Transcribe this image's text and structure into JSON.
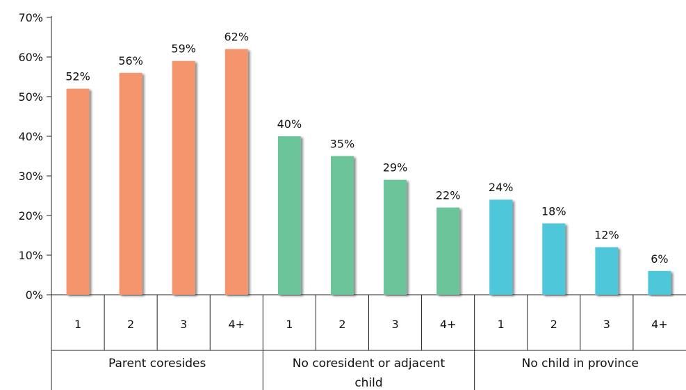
{
  "chart_data": {
    "type": "bar",
    "title": "",
    "xlabel": "",
    "ylabel": "",
    "ylim": [
      0,
      70
    ],
    "y_ticks": [
      "0%",
      "10%",
      "20%",
      "30%",
      "40%",
      "50%",
      "60%",
      "70%"
    ],
    "y_tick_values": [
      0,
      10,
      20,
      30,
      40,
      50,
      60,
      70
    ],
    "grid": false,
    "legend": "none",
    "groups": [
      {
        "name": "Parent coresides",
        "name_lines": [
          "Parent coresides"
        ],
        "color": "#F4956E",
        "categories": [
          "1",
          "2",
          "3",
          "4+"
        ],
        "values": [
          52,
          56,
          59,
          62
        ],
        "labels": [
          "52%",
          "56%",
          "59%",
          "62%"
        ]
      },
      {
        "name": "No coresident or adjacent child",
        "name_lines": [
          "No coresident or adjacent",
          "child"
        ],
        "color": "#6CC59A",
        "categories": [
          "1",
          "2",
          "3",
          "4+"
        ],
        "values": [
          40,
          35,
          29,
          22
        ],
        "labels": [
          "40%",
          "35%",
          "29%",
          "22%"
        ]
      },
      {
        "name": "No child in province",
        "name_lines": [
          "No child in province"
        ],
        "color": "#4EC7D9",
        "categories": [
          "1",
          "2",
          "3",
          "4+"
        ],
        "values": [
          24,
          18,
          12,
          6
        ],
        "labels": [
          "24%",
          "18%",
          "12%",
          "6%"
        ]
      }
    ]
  }
}
